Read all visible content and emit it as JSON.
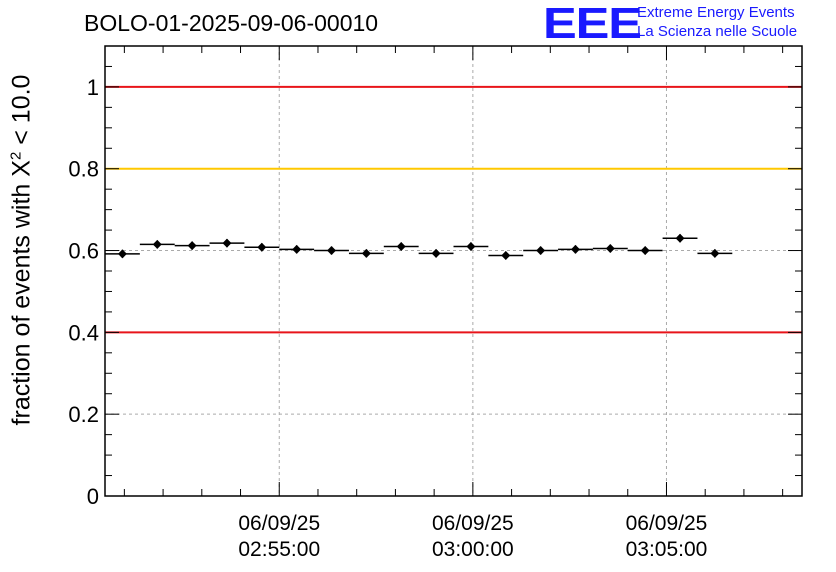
{
  "title": "BOLO-01-2025-09-06-00010",
  "logo": {
    "mark": "EEE",
    "line1": "Extreme Energy Events",
    "line2": "La Scienza nelle Scuole"
  },
  "chart_data": {
    "type": "scatter",
    "title": "BOLO-01-2025-09-06-00010",
    "ylabel_main": "fraction of events with X",
    "ylabel_sup": "2",
    "ylabel_tail": " < 10.0",
    "xlabel": "",
    "ylim": [
      0,
      1.1
    ],
    "xlim_minutes": [
      -9.5,
      8.5
    ],
    "yticks": [
      {
        "value": 0,
        "label": "0"
      },
      {
        "value": 0.2,
        "label": "0.2"
      },
      {
        "value": 0.4,
        "label": "0.4"
      },
      {
        "value": 0.6,
        "label": "0.6"
      },
      {
        "value": 0.8,
        "label": "0.8"
      },
      {
        "value": 1.0,
        "label": "1"
      }
    ],
    "xticks": [
      {
        "minutes": -5,
        "date": "06/09/25",
        "time": "02:55:00"
      },
      {
        "minutes": 0,
        "date": "06/09/25",
        "time": "03:00:00"
      },
      {
        "minutes": 5,
        "date": "06/09/25",
        "time": "03:05:00"
      }
    ],
    "reference_lines": [
      {
        "value": 1.0,
        "color": "#e8141a"
      },
      {
        "value": 0.8,
        "color": "#ffc800"
      },
      {
        "value": 0.4,
        "color": "#e8141a"
      }
    ],
    "bin_width_minutes": 0.9,
    "points": [
      {
        "x": -9.05,
        "y": 0.592
      },
      {
        "x": -8.15,
        "y": 0.615
      },
      {
        "x": -7.25,
        "y": 0.612
      },
      {
        "x": -6.35,
        "y": 0.618
      },
      {
        "x": -5.45,
        "y": 0.608
      },
      {
        "x": -4.55,
        "y": 0.603
      },
      {
        "x": -3.65,
        "y": 0.6
      },
      {
        "x": -2.75,
        "y": 0.593
      },
      {
        "x": -1.85,
        "y": 0.61
      },
      {
        "x": -0.95,
        "y": 0.593
      },
      {
        "x": -0.05,
        "y": 0.61
      },
      {
        "x": 0.85,
        "y": 0.588
      },
      {
        "x": 1.75,
        "y": 0.6
      },
      {
        "x": 2.65,
        "y": 0.603
      },
      {
        "x": 3.55,
        "y": 0.605
      },
      {
        "x": 4.45,
        "y": 0.6
      },
      {
        "x": 5.35,
        "y": 0.63
      },
      {
        "x": 6.25,
        "y": 0.593
      }
    ]
  }
}
